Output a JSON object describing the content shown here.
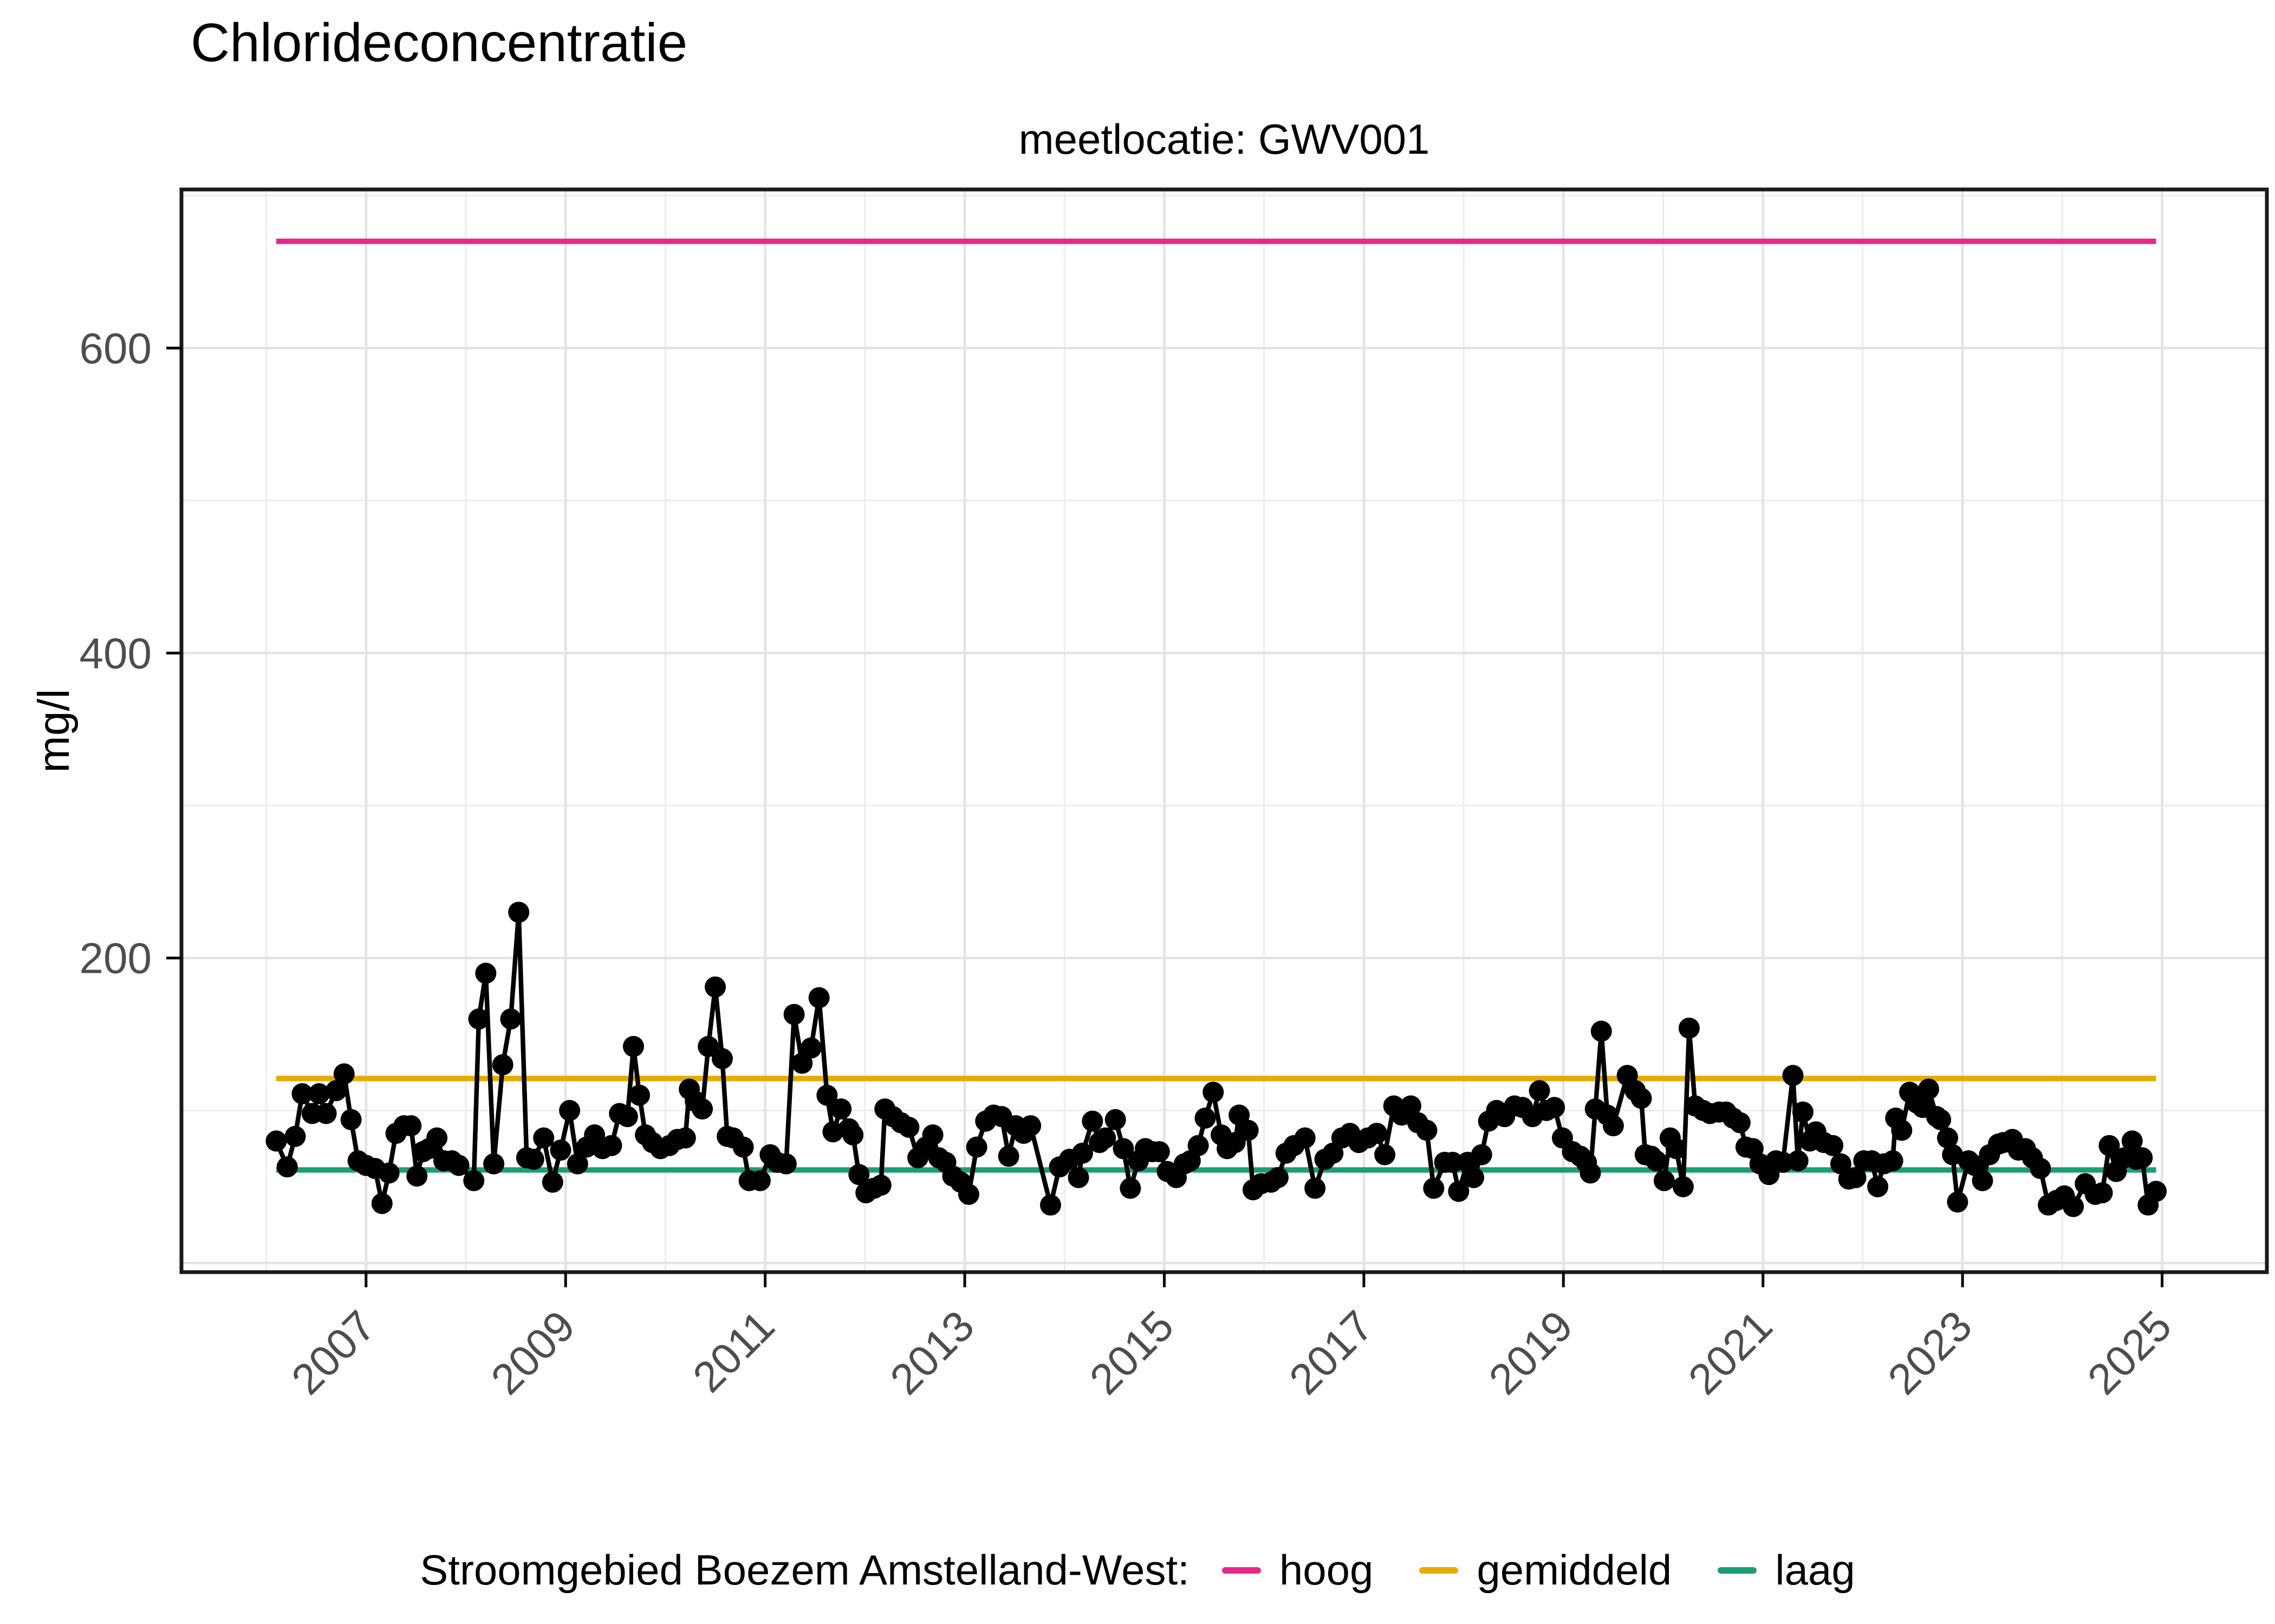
{
  "title": "Chlorideconcentratie",
  "subtitle": "meetlocatie: GWV001",
  "y_axis_title": "mg/l",
  "legend": {
    "prefix": "Stroomgebied Boezem Amstelland-West:"
  },
  "colors": {
    "background": "#ffffff",
    "panel_border": "#1a1a1a",
    "grid_major": "#e3e3e3",
    "grid_minor": "#ededed",
    "axis_text": "#4d4d4d",
    "series": "#000000",
    "hoog": "#E7298A",
    "gemiddeld": "#E6AB02",
    "laag": "#1B9E77"
  },
  "chart_data": {
    "type": "line",
    "title": "Chlorideconcentratie",
    "subtitle": "meetlocatie: GWV001",
    "xlabel": "",
    "ylabel": "mg/l",
    "xlim": [
      2005.15,
      2026.05
    ],
    "ylim": [
      -6,
      704
    ],
    "x_ticks": [
      2007,
      2009,
      2011,
      2013,
      2015,
      2017,
      2019,
      2021,
      2023,
      2025
    ],
    "x_minor_grid": [
      2006,
      2008,
      2010,
      2012,
      2014,
      2016,
      2018,
      2020,
      2022,
      2024
    ],
    "y_ticks": [
      200,
      400,
      600
    ],
    "y_major_grid": [
      0,
      200,
      400,
      600
    ],
    "y_minor_grid": [
      100,
      300,
      500,
      700
    ],
    "grid": "on",
    "legend_position": "bottom",
    "x_tick_angle": 45,
    "reference_lines": [
      {
        "name": "hoog",
        "value": 670,
        "color": "#E7298A"
      },
      {
        "name": "gemiddeld",
        "value": 121,
        "color": "#E6AB02"
      },
      {
        "name": "laag",
        "value": 61,
        "color": "#1B9E77"
      }
    ],
    "series": [
      {
        "name": "chlorideconcentratie GWV001",
        "color": "#000000",
        "points": [
          [
            2006.1,
            80
          ],
          [
            2006.21,
            63
          ],
          [
            2006.29,
            83
          ],
          [
            2006.36,
            111
          ],
          [
            2006.46,
            98
          ],
          [
            2006.53,
            111
          ],
          [
            2006.6,
            98
          ],
          [
            2006.7,
            113
          ],
          [
            2006.78,
            124
          ],
          [
            2006.85,
            94
          ],
          [
            2006.92,
            67
          ],
          [
            2007.0,
            64
          ],
          [
            2007.09,
            62
          ],
          [
            2007.16,
            39
          ],
          [
            2007.23,
            59
          ],
          [
            2007.3,
            85
          ],
          [
            2007.38,
            90
          ],
          [
            2007.45,
            90
          ],
          [
            2007.51,
            57
          ],
          [
            2007.57,
            73
          ],
          [
            2007.63,
            75
          ],
          [
            2007.71,
            82
          ],
          [
            2007.78,
            67
          ],
          [
            2007.86,
            67
          ],
          [
            2007.93,
            64
          ],
          [
            2008.08,
            54
          ],
          [
            2008.13,
            160
          ],
          [
            2008.2,
            190
          ],
          [
            2008.28,
            65
          ],
          [
            2008.37,
            130
          ],
          [
            2008.45,
            160
          ],
          [
            2008.53,
            230
          ],
          [
            2008.61,
            69
          ],
          [
            2008.68,
            68
          ],
          [
            2008.78,
            82
          ],
          [
            2008.87,
            53
          ],
          [
            2008.95,
            74
          ],
          [
            2009.04,
            100
          ],
          [
            2009.12,
            65
          ],
          [
            2009.21,
            76
          ],
          [
            2009.29,
            84
          ],
          [
            2009.37,
            75
          ],
          [
            2009.46,
            77
          ],
          [
            2009.54,
            98
          ],
          [
            2009.62,
            96
          ],
          [
            2009.68,
            142
          ],
          [
            2009.74,
            110
          ],
          [
            2009.8,
            84
          ],
          [
            2009.87,
            79
          ],
          [
            2009.95,
            75
          ],
          [
            2010.04,
            77
          ],
          [
            2010.12,
            81
          ],
          [
            2010.2,
            82
          ],
          [
            2010.24,
            114
          ],
          [
            2010.3,
            106
          ],
          [
            2010.37,
            101
          ],
          [
            2010.43,
            142
          ],
          [
            2010.5,
            181
          ],
          [
            2010.57,
            134
          ],
          [
            2010.62,
            83
          ],
          [
            2010.68,
            82
          ],
          [
            2010.78,
            76
          ],
          [
            2010.84,
            54
          ],
          [
            2010.95,
            54
          ],
          [
            2011.05,
            71
          ],
          [
            2011.12,
            66
          ],
          [
            2011.21,
            65
          ],
          [
            2011.29,
            163
          ],
          [
            2011.37,
            131
          ],
          [
            2011.46,
            141
          ],
          [
            2011.54,
            174
          ],
          [
            2011.62,
            110
          ],
          [
            2011.68,
            86
          ],
          [
            2011.76,
            101
          ],
          [
            2011.84,
            88
          ],
          [
            2011.88,
            84
          ],
          [
            2011.94,
            58
          ],
          [
            2012.01,
            46
          ],
          [
            2012.09,
            49
          ],
          [
            2012.16,
            51
          ],
          [
            2012.2,
            101
          ],
          [
            2012.28,
            96
          ],
          [
            2012.36,
            92
          ],
          [
            2012.44,
            89
          ],
          [
            2012.53,
            69
          ],
          [
            2012.61,
            76
          ],
          [
            2012.68,
            84
          ],
          [
            2012.74,
            69
          ],
          [
            2012.81,
            66
          ],
          [
            2012.88,
            57
          ],
          [
            2012.96,
            53
          ],
          [
            2013.04,
            45
          ],
          [
            2013.12,
            76
          ],
          [
            2013.21,
            93
          ],
          [
            2013.29,
            97
          ],
          [
            2013.37,
            96
          ],
          [
            2013.44,
            70
          ],
          [
            2013.51,
            90
          ],
          [
            2013.59,
            85
          ],
          [
            2013.66,
            90
          ],
          [
            2013.86,
            38
          ],
          [
            2013.95,
            63
          ],
          [
            2014.05,
            68
          ],
          [
            2014.14,
            56
          ],
          [
            2014.18,
            72
          ],
          [
            2014.28,
            93
          ],
          [
            2014.35,
            79
          ],
          [
            2014.41,
            82
          ],
          [
            2014.51,
            94
          ],
          [
            2014.59,
            75
          ],
          [
            2014.66,
            49
          ],
          [
            2014.74,
            67
          ],
          [
            2014.81,
            75
          ],
          [
            2014.88,
            73
          ],
          [
            2014.95,
            73
          ],
          [
            2015.03,
            60
          ],
          [
            2015.12,
            56
          ],
          [
            2015.2,
            65
          ],
          [
            2015.26,
            67
          ],
          [
            2015.34,
            77
          ],
          [
            2015.41,
            95
          ],
          [
            2015.49,
            112
          ],
          [
            2015.57,
            84
          ],
          [
            2015.63,
            75
          ],
          [
            2015.71,
            79
          ],
          [
            2015.75,
            97
          ],
          [
            2015.84,
            87
          ],
          [
            2015.89,
            48
          ],
          [
            2015.97,
            52
          ],
          [
            2016.07,
            53
          ],
          [
            2016.14,
            56
          ],
          [
            2016.22,
            72
          ],
          [
            2016.3,
            77
          ],
          [
            2016.41,
            82
          ],
          [
            2016.51,
            49
          ],
          [
            2016.61,
            68
          ],
          [
            2016.69,
            72
          ],
          [
            2016.78,
            82
          ],
          [
            2016.86,
            85
          ],
          [
            2016.95,
            79
          ],
          [
            2017.04,
            82
          ],
          [
            2017.13,
            85
          ],
          [
            2017.21,
            71
          ],
          [
            2017.3,
            103
          ],
          [
            2017.38,
            97
          ],
          [
            2017.47,
            103
          ],
          [
            2017.54,
            92
          ],
          [
            2017.63,
            87
          ],
          [
            2017.7,
            49
          ],
          [
            2017.81,
            66
          ],
          [
            2017.89,
            66
          ],
          [
            2017.95,
            47
          ],
          [
            2018.04,
            66
          ],
          [
            2018.1,
            56
          ],
          [
            2018.18,
            71
          ],
          [
            2018.25,
            93
          ],
          [
            2018.33,
            100
          ],
          [
            2018.41,
            96
          ],
          [
            2018.51,
            103
          ],
          [
            2018.59,
            102
          ],
          [
            2018.69,
            96
          ],
          [
            2018.76,
            113
          ],
          [
            2018.83,
            100
          ],
          [
            2018.91,
            102
          ],
          [
            2018.99,
            82
          ],
          [
            2019.09,
            73
          ],
          [
            2019.17,
            70
          ],
          [
            2019.23,
            66
          ],
          [
            2019.27,
            59
          ],
          [
            2019.32,
            101
          ],
          [
            2019.38,
            152
          ],
          [
            2019.44,
            97
          ],
          [
            2019.5,
            90
          ],
          [
            2019.64,
            123
          ],
          [
            2019.72,
            113
          ],
          [
            2019.78,
            108
          ],
          [
            2019.82,
            71
          ],
          [
            2019.88,
            70
          ],
          [
            2019.93,
            67
          ],
          [
            2020.01,
            54
          ],
          [
            2020.07,
            82
          ],
          [
            2020.13,
            75
          ],
          [
            2020.2,
            50
          ],
          [
            2020.26,
            154
          ],
          [
            2020.32,
            103
          ],
          [
            2020.4,
            100
          ],
          [
            2020.47,
            98
          ],
          [
            2020.56,
            99
          ],
          [
            2020.63,
            99
          ],
          [
            2020.7,
            95
          ],
          [
            2020.77,
            92
          ],
          [
            2020.83,
            76
          ],
          [
            2020.9,
            75
          ],
          [
            2020.97,
            65
          ],
          [
            2021.06,
            58
          ],
          [
            2021.13,
            67
          ],
          [
            2021.2,
            66
          ],
          [
            2021.3,
            123
          ],
          [
            2021.35,
            67
          ],
          [
            2021.4,
            99
          ],
          [
            2021.47,
            80
          ],
          [
            2021.53,
            86
          ],
          [
            2021.61,
            79
          ],
          [
            2021.7,
            77
          ],
          [
            2021.78,
            65
          ],
          [
            2021.86,
            55
          ],
          [
            2021.93,
            56
          ],
          [
            2022.01,
            67
          ],
          [
            2022.09,
            67
          ],
          [
            2022.15,
            50
          ],
          [
            2022.21,
            65
          ],
          [
            2022.3,
            67
          ],
          [
            2022.33,
            95
          ],
          [
            2022.39,
            87
          ],
          [
            2022.47,
            112
          ],
          [
            2022.54,
            105
          ],
          [
            2022.6,
            102
          ],
          [
            2022.66,
            114
          ],
          [
            2022.74,
            96
          ],
          [
            2022.78,
            94
          ],
          [
            2022.85,
            82
          ],
          [
            2022.9,
            71
          ],
          [
            2022.95,
            40
          ],
          [
            2023.06,
            67
          ],
          [
            2023.12,
            64
          ],
          [
            2023.2,
            54
          ],
          [
            2023.27,
            71
          ],
          [
            2023.36,
            78
          ],
          [
            2023.41,
            79
          ],
          [
            2023.5,
            81
          ],
          [
            2023.56,
            74
          ],
          [
            2023.63,
            75
          ],
          [
            2023.7,
            69
          ],
          [
            2023.78,
            62
          ],
          [
            2023.86,
            38
          ],
          [
            2023.94,
            41
          ],
          [
            2024.02,
            44
          ],
          [
            2024.11,
            37
          ],
          [
            2024.23,
            52
          ],
          [
            2024.33,
            45
          ],
          [
            2024.4,
            46
          ],
          [
            2024.47,
            77
          ],
          [
            2024.54,
            60
          ],
          [
            2024.62,
            69
          ],
          [
            2024.7,
            80
          ],
          [
            2024.74,
            68
          ],
          [
            2024.8,
            69
          ],
          [
            2024.86,
            38
          ],
          [
            2024.94,
            47
          ]
        ]
      }
    ]
  }
}
